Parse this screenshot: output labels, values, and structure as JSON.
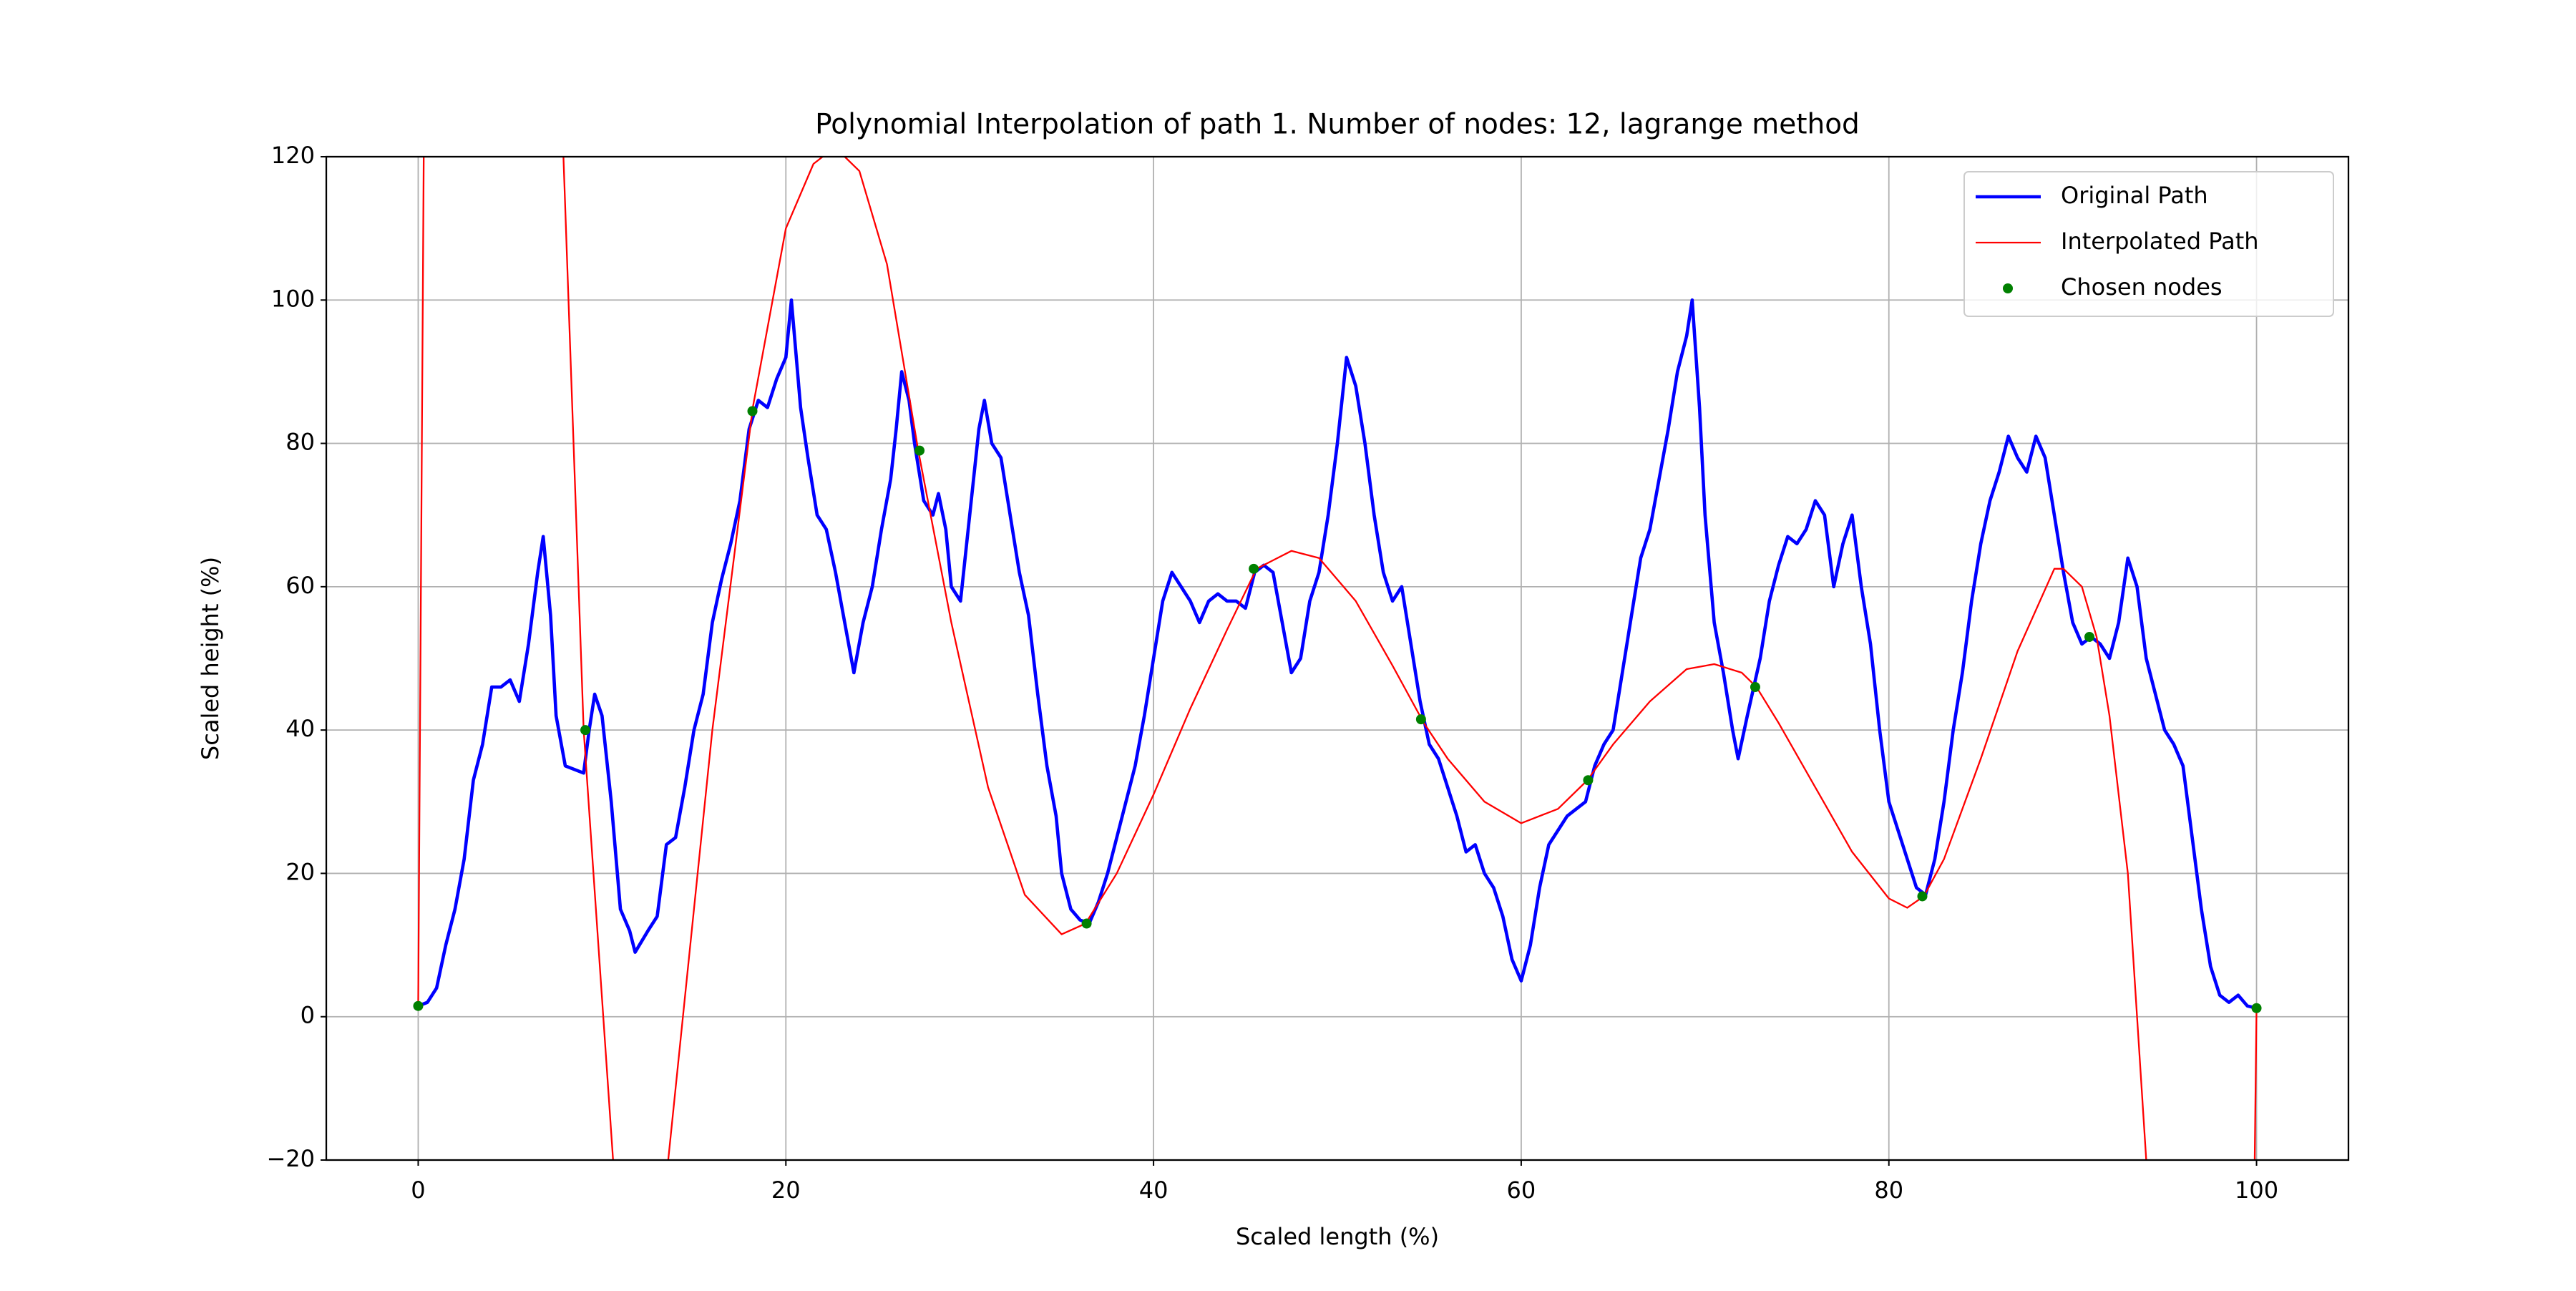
{
  "chart_data": {
    "type": "line",
    "title": "Polynomial Interpolation of path 1. Number of nodes: 12, lagrange method",
    "xlabel": "Scaled length (%)",
    "ylabel": "Scaled height (%)",
    "xlim": [
      -5,
      105
    ],
    "ylim": [
      -20,
      120
    ],
    "xticks": [
      0,
      20,
      40,
      60,
      80,
      100
    ],
    "yticks": [
      {
        "value": -20,
        "label": "−20"
      },
      0,
      20,
      40,
      60,
      80,
      100,
      120
    ],
    "grid": true,
    "legend": "upper right",
    "series": [
      {
        "name": "Original Path",
        "type": "line",
        "color": "#0000ff",
        "x": [
          0,
          0.5,
          1,
          1.5,
          2,
          2.5,
          3,
          3.5,
          4,
          4.5,
          5,
          5.5,
          6,
          6.5,
          6.8,
          7.2,
          7.5,
          8,
          8.5,
          9,
          9.3,
          9.6,
          10,
          10.5,
          11,
          11.5,
          11.8,
          12.5,
          13,
          13.5,
          14,
          14.5,
          15,
          15.5,
          16,
          16.5,
          17,
          17.5,
          18,
          18.5,
          19,
          19.5,
          20,
          20.3,
          20.8,
          21.2,
          21.7,
          22.2,
          22.7,
          23.2,
          23.7,
          24.2,
          24.7,
          25.2,
          25.7,
          26,
          26.3,
          26.7,
          27,
          27.5,
          28,
          28.3,
          28.7,
          29,
          29.5,
          30,
          30.5,
          30.8,
          31.2,
          31.7,
          32.2,
          32.7,
          33.2,
          33.7,
          34.2,
          34.7,
          35,
          35.5,
          36,
          36.5,
          37,
          37.5,
          38,
          38.5,
          39,
          39.5,
          40,
          40.5,
          41,
          41.5,
          42,
          42.5,
          43,
          43.5,
          44,
          44.5,
          45,
          45.5,
          46,
          46.5,
          47,
          47.5,
          48,
          48.5,
          49,
          49.5,
          50,
          50.5,
          51,
          51.5,
          52,
          52.5,
          53,
          53.5,
          54,
          54.5,
          55,
          55.5,
          56,
          56.5,
          57,
          57.5,
          58,
          58.5,
          59,
          59.5,
          60,
          60.5,
          61,
          61.5,
          62,
          62.5,
          63,
          63.5,
          64,
          64.5,
          65,
          65.5,
          66,
          66.5,
          67,
          67.5,
          68,
          68.5,
          69,
          69.3,
          69.7,
          70,
          70.5,
          71,
          71.5,
          71.8,
          72.3,
          73,
          73.5,
          74,
          74.5,
          75,
          75.5,
          76,
          76.5,
          77,
          77.5,
          78,
          78.5,
          79,
          79.5,
          80,
          80.5,
          81,
          81.5,
          82,
          82.5,
          83,
          83.5,
          84,
          84.5,
          85,
          85.5,
          86,
          86.5,
          87,
          87.5,
          88,
          88.5,
          89,
          89.5,
          90,
          90.5,
          91,
          91.5,
          92,
          92.5,
          93,
          93.5,
          94,
          94.5,
          95,
          95.5,
          96,
          96.5,
          97,
          97.5,
          98,
          98.5,
          99,
          99.5,
          100
        ],
        "values": [
          1.5,
          2,
          4,
          10,
          15,
          22,
          33,
          38,
          46,
          46,
          47,
          44,
          52,
          62,
          67,
          56,
          42,
          35,
          34.5,
          34,
          40,
          45,
          42,
          30,
          15,
          12,
          9,
          12,
          14,
          24,
          25,
          32,
          40,
          45,
          55,
          61,
          66,
          72,
          82,
          86,
          85,
          89,
          92,
          100,
          85,
          78,
          70,
          68,
          62,
          55,
          48,
          55,
          60,
          68,
          75,
          82,
          90,
          86,
          80,
          72,
          70,
          73,
          68,
          60,
          58,
          70,
          82,
          86,
          80,
          78,
          70,
          62,
          56,
          45,
          35,
          28,
          20,
          15,
          13.5,
          13,
          16,
          20,
          25,
          30,
          35,
          42,
          50,
          58,
          62,
          60,
          58,
          55,
          58,
          59,
          58,
          58,
          57,
          62,
          63,
          62,
          55,
          48,
          50,
          58,
          62,
          70,
          80,
          92,
          88,
          80,
          70,
          62,
          58,
          60,
          52,
          44,
          38,
          36,
          32,
          28,
          23,
          24,
          20,
          18,
          14,
          8,
          5,
          10,
          18,
          24,
          26,
          28,
          29,
          30,
          35,
          38,
          40,
          48,
          56,
          64,
          68,
          75,
          82,
          90,
          95,
          100,
          85,
          70,
          55,
          48,
          40,
          36,
          42,
          50,
          58,
          63,
          67,
          66,
          68,
          72,
          70,
          60,
          66,
          70,
          60,
          52,
          40,
          30,
          26,
          22,
          18,
          17,
          22,
          30,
          40,
          48,
          58,
          66,
          72,
          76,
          81,
          78,
          76,
          81,
          78,
          70,
          62,
          55,
          52,
          53,
          52,
          50,
          55,
          64,
          60,
          50,
          45,
          40,
          38,
          35,
          25,
          15,
          7,
          3,
          2,
          3,
          1.5,
          1.2
        ]
      },
      {
        "name": "Interpolated Path",
        "type": "line",
        "color": "#ff0000",
        "x": [
          0,
          0.3,
          4,
          7.9,
          9,
          10.6,
          12,
          13.6,
          16,
          18.2,
          20,
          21.5,
          22,
          23,
          24,
          25.5,
          27.2,
          29,
          31,
          33,
          35,
          36.3,
          38,
          40,
          42,
          44,
          45.6,
          47.5,
          49,
          51,
          53,
          54.7,
          56,
          58,
          60,
          62,
          63.6,
          65,
          67,
          69,
          70.5,
          72,
          72.8,
          74,
          76,
          78,
          80,
          81,
          81.9,
          83,
          85,
          87,
          89,
          89.5,
          90.5,
          91.3,
          92,
          93,
          94,
          97,
          99.9,
          100
        ],
        "values": [
          1.5,
          120,
          null,
          120,
          40,
          -20,
          null,
          -20,
          40,
          85,
          110,
          119,
          120,
          120.5,
          118,
          105,
          79,
          55,
          32,
          17,
          11.5,
          13,
          20,
          31,
          43,
          54,
          62.5,
          65,
          64,
          58,
          49,
          41,
          36,
          30,
          27,
          29,
          33,
          38,
          44,
          48.5,
          49.2,
          48,
          46,
          41,
          32,
          23,
          16.5,
          15.2,
          16.8,
          22,
          36,
          51,
          62.5,
          62.5,
          60,
          53,
          42,
          20,
          -20,
          null,
          -20,
          1.2
        ]
      },
      {
        "name": "Chosen nodes",
        "type": "scatter",
        "color": "#008000",
        "x": [
          0,
          9.09,
          18.18,
          27.27,
          36.36,
          45.45,
          54.55,
          63.64,
          72.73,
          81.82,
          90.91,
          100
        ],
        "values": [
          1.5,
          40,
          84.5,
          79,
          13,
          62.5,
          41.5,
          33,
          46,
          16.8,
          53,
          1.2
        ]
      }
    ]
  }
}
